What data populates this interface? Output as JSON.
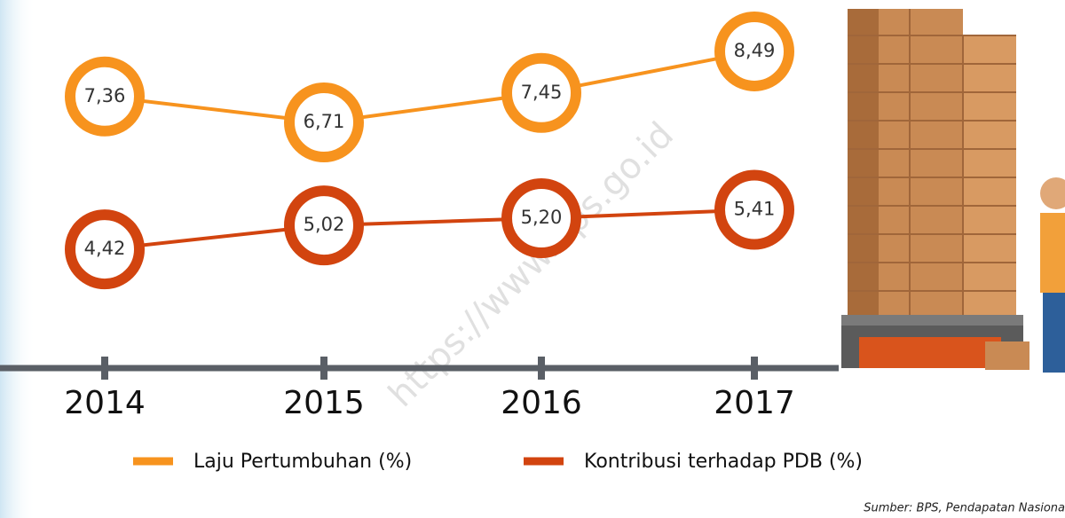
{
  "chart_data": {
    "type": "line",
    "categories": [
      "2014",
      "2015",
      "2016",
      "2017"
    ],
    "series": [
      {
        "name": "Laju Pertumbuhan (%)",
        "color": "#f7931e",
        "values": [
          7.36,
          6.71,
          7.45,
          8.49
        ],
        "value_labels": [
          "7,36",
          "6,71",
          "7,45",
          "8,49"
        ]
      },
      {
        "name": "Kontribusi terhadap PDB (%)",
        "color": "#d2440f",
        "values": [
          4.42,
          5.02,
          5.2,
          5.41
        ],
        "value_labels": [
          "4,42",
          "5,02",
          "5,20",
          "5,41"
        ]
      }
    ],
    "source": "Sumber: BPS, Pendapatan Nasiona",
    "watermark": "https://www.bps.go.id"
  }
}
